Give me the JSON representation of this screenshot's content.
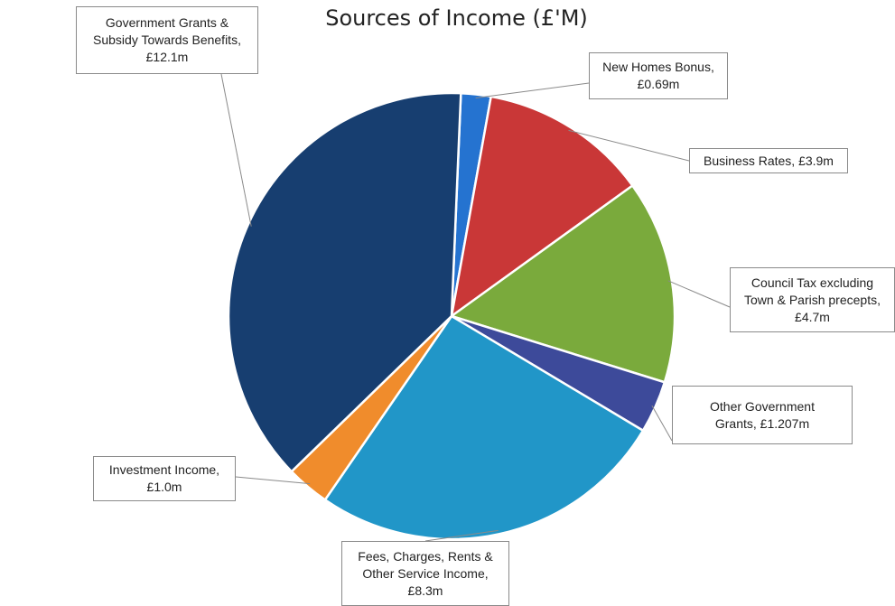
{
  "chart_data": {
    "type": "pie",
    "title": "Sources of Income (£'M)",
    "start_angle_deg": 2.4,
    "slices": [
      {
        "label_line1": "New Homes Bonus,",
        "label_line2": "£0.69m",
        "label_line3": "",
        "value": 0.69,
        "color": "#2573d0"
      },
      {
        "label_line1": "Business Rates, £3.9m",
        "label_line2": "",
        "label_line3": "",
        "value": 3.9,
        "color": "#c93737"
      },
      {
        "label_line1": "Council Tax excluding",
        "label_line2": "Town & Parish precepts,",
        "label_line3": "£4.7m",
        "value": 4.7,
        "color": "#7aaa3c"
      },
      {
        "label_line1": "Other Government",
        "label_line2": "Grants, £1.207m",
        "label_line3": "",
        "value": 1.207,
        "color": "#3d4a9a"
      },
      {
        "label_line1": "Fees, Charges, Rents &",
        "label_line2": "Other Service Income,",
        "label_line3": "£8.3m",
        "value": 8.3,
        "color": "#2196c8"
      },
      {
        "label_line1": "Investment Income,",
        "label_line2": "£1.0m",
        "label_line3": "",
        "value": 1.0,
        "color": "#f08c2c"
      },
      {
        "label_line1": "Government Grants &",
        "label_line2": "Subsidy Towards Benefits,",
        "label_line3": "£12.1m",
        "value": 12.1,
        "color": "#173e70"
      }
    ]
  }
}
